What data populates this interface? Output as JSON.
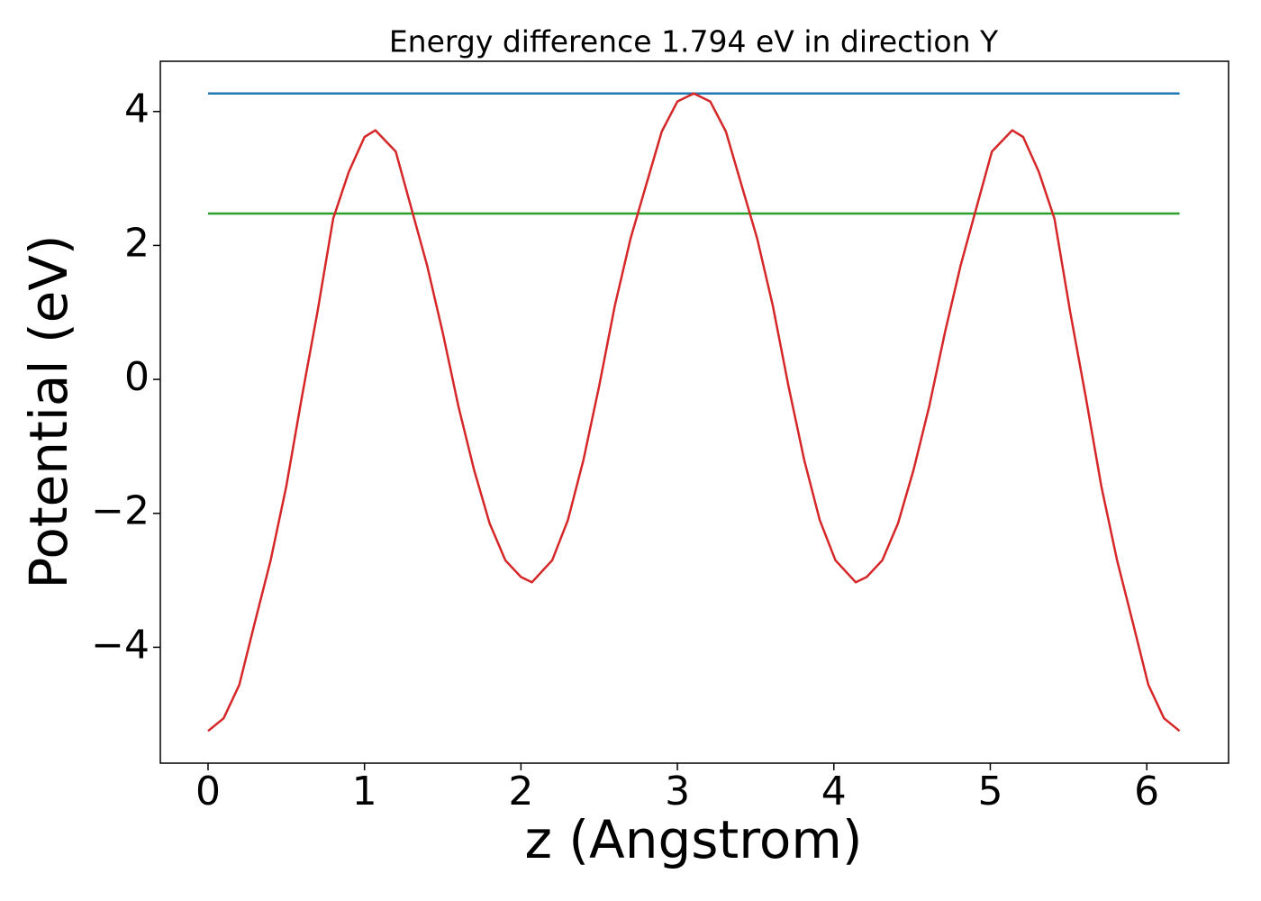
{
  "chart_data": {
    "type": "line",
    "title": "Energy difference 1.794 eV in direction Y",
    "xlabel": "z (Angstrom)",
    "ylabel": "Potential (eV)",
    "xlim": [
      -0.305,
      6.523
    ],
    "ylim": [
      -5.73,
      4.75
    ],
    "xticks": [
      0,
      1,
      2,
      3,
      4,
      5,
      6
    ],
    "yticks": [
      -4,
      -2,
      0,
      2,
      4
    ],
    "series": [
      {
        "color": "#1f77b4",
        "x": [
          0,
          6.21
        ],
        "values": [
          4.27,
          4.27
        ]
      },
      {
        "color": "#2ca02c",
        "x": [
          0,
          6.21
        ],
        "values": [
          2.476,
          2.476
        ]
      },
      {
        "color": "#d62728",
        "x": [
          0,
          0.1,
          0.2,
          0.3,
          0.4,
          0.5,
          0.6,
          0.7,
          0.8,
          0.9,
          1.0,
          1.07,
          1.2,
          1.3,
          1.4,
          1.5,
          1.6,
          1.7,
          1.8,
          1.9,
          2.0,
          2.07,
          2.2,
          2.3,
          2.4,
          2.5,
          2.6,
          2.7,
          2.8,
          2.9,
          3.0,
          3.105,
          3.21,
          3.31,
          3.41,
          3.51,
          3.61,
          3.71,
          3.81,
          3.91,
          4.01,
          4.14,
          4.21,
          4.31,
          4.41,
          4.51,
          4.61,
          4.71,
          4.81,
          4.91,
          5.01,
          5.14,
          5.21,
          5.31,
          5.41,
          5.51,
          5.61,
          5.71,
          5.81,
          5.91,
          6.01,
          6.11,
          6.21
        ],
        "values": [
          -5.25,
          -5.06,
          -4.56,
          -3.62,
          -2.7,
          -1.6,
          -0.26,
          1.02,
          2.4,
          3.1,
          3.62,
          3.72,
          3.4,
          2.55,
          1.7,
          0.7,
          -0.4,
          -1.35,
          -2.15,
          -2.7,
          -2.95,
          -3.03,
          -2.7,
          -2.1,
          -1.2,
          -0.1,
          1.1,
          2.1,
          2.9,
          3.7,
          4.15,
          4.27,
          4.15,
          3.7,
          2.9,
          2.1,
          1.1,
          -0.1,
          -1.2,
          -2.1,
          -2.7,
          -3.03,
          -2.95,
          -2.7,
          -2.15,
          -1.35,
          -0.4,
          0.7,
          1.7,
          2.55,
          3.4,
          3.72,
          3.62,
          3.1,
          2.4,
          1.02,
          -0.26,
          -1.6,
          -2.7,
          -3.62,
          -4.56,
          -5.06,
          -5.25
        ]
      }
    ]
  }
}
